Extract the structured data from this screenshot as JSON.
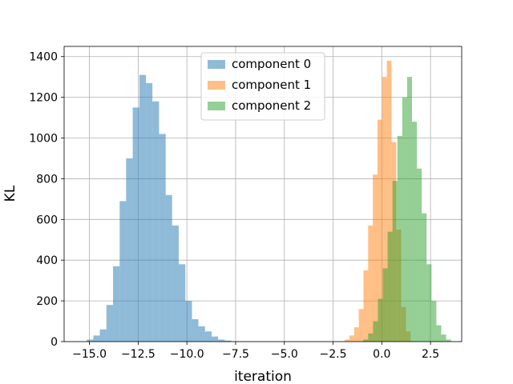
{
  "chart_data": {
    "type": "histogram",
    "xlabel": "iteration",
    "ylabel": "KL",
    "xlim": [
      -16.3,
      4.1
    ],
    "ylim": [
      0,
      1450
    ],
    "xticks": [
      -15.0,
      -12.5,
      -10.0,
      -7.5,
      -5.0,
      -2.5,
      0.0,
      2.5
    ],
    "xtick_labels": [
      "−15.0",
      "−12.5",
      "−10.0",
      "−7.5",
      "−5.0",
      "−2.5",
      "0.0",
      "2.5"
    ],
    "yticks": [
      0,
      200,
      400,
      600,
      800,
      1000,
      1200,
      1400
    ],
    "ytick_labels": [
      "0",
      "200",
      "400",
      "600",
      "800",
      "1000",
      "1200",
      "1400"
    ],
    "grid": true,
    "legend_position": "top-center",
    "series": [
      {
        "name": "component 0",
        "color": "#1f77b4",
        "alpha": 0.5,
        "bin_edges": [
          -15.14,
          -14.8,
          -14.47,
          -14.13,
          -13.79,
          -13.45,
          -13.12,
          -12.78,
          -12.44,
          -12.1,
          -11.77,
          -11.43,
          -11.09,
          -10.76,
          -10.42,
          -10.08,
          -9.74,
          -9.41,
          -9.07,
          -8.73,
          -8.4,
          -8.06,
          -7.72
        ],
        "counts": [
          10,
          30,
          60,
          180,
          370,
          690,
          900,
          1150,
          1310,
          1270,
          1180,
          1020,
          720,
          570,
          380,
          200,
          110,
          75,
          50,
          25,
          10,
          5
        ]
      },
      {
        "name": "component 1",
        "color": "#ff7f0e",
        "alpha": 0.5,
        "bin_edges": [
          -1.9,
          -1.66,
          -1.42,
          -1.18,
          -0.94,
          -0.7,
          -0.46,
          -0.22,
          0.02,
          0.26,
          0.5,
          0.74,
          1.0,
          1.24,
          1.48
        ],
        "counts": [
          10,
          30,
          70,
          160,
          350,
          570,
          820,
          1090,
          1300,
          1380,
          980,
          550,
          170,
          50
        ]
      },
      {
        "name": "component 2",
        "color": "#2ca02c",
        "alpha": 0.5,
        "bin_edges": [
          -0.95,
          -0.7,
          -0.45,
          -0.2,
          0.05,
          0.3,
          0.55,
          0.8,
          1.05,
          1.3,
          1.55,
          1.8,
          2.05,
          2.3,
          2.55,
          2.8,
          3.05,
          3.3,
          3.55
        ],
        "counts": [
          10,
          40,
          100,
          210,
          360,
          540,
          790,
          1010,
          1200,
          1300,
          1080,
          850,
          630,
          380,
          200,
          80,
          35,
          10
        ]
      }
    ]
  }
}
